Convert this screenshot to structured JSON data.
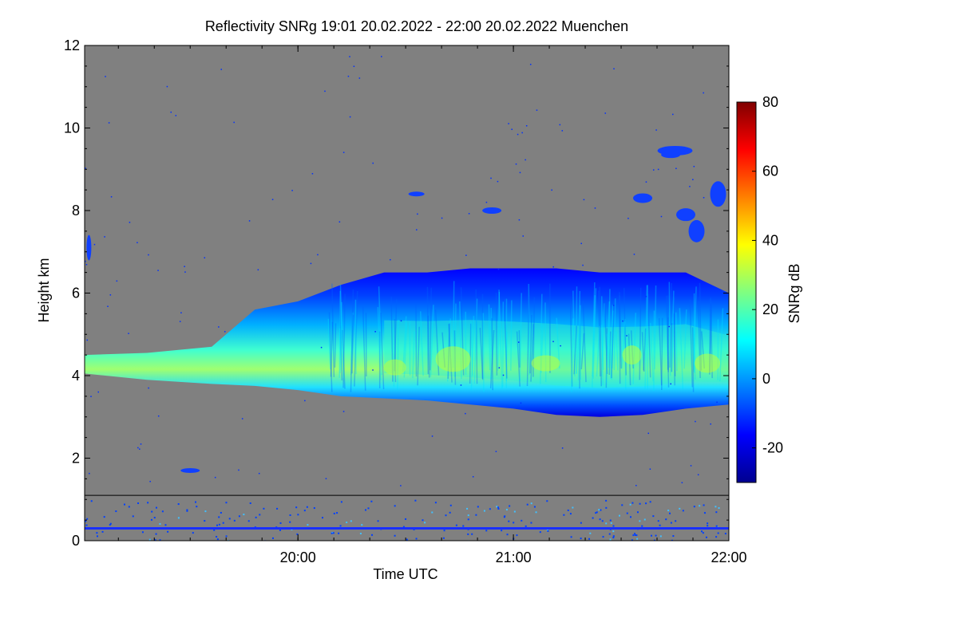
{
  "chart_data": {
    "type": "heatmap",
    "title": "Reflectivity SNRg   19:01 20.02.2022 - 22:00 20.02.2022 Muenchen",
    "xlabel": "Time UTC",
    "ylabel": "Height km",
    "colorbar_label": "SNRg dB",
    "x_ticks": [
      {
        "label": "20:00",
        "hour": 20.0
      },
      {
        "label": "21:00",
        "hour": 21.0
      },
      {
        "label": "22:00",
        "hour": 22.0
      }
    ],
    "xlim": [
      19.01,
      22.0
    ],
    "ylim": [
      0,
      12
    ],
    "y_ticks": [
      0,
      2,
      4,
      6,
      8,
      10,
      12
    ],
    "y_tick_labels": [
      "0",
      "2",
      "4",
      "6",
      "8",
      "10",
      "12"
    ],
    "colorbar_range": [
      -30,
      80
    ],
    "colorbar_ticks": [
      -20,
      0,
      20,
      40,
      60,
      80
    ],
    "colorbar_tick_labels": [
      "-20",
      "0",
      "20",
      "40",
      "60",
      "80"
    ],
    "background_color": "#808080",
    "colormap": [
      "#00008f",
      "#0000ff",
      "#0080ff",
      "#00ffff",
      "#80ff80",
      "#ffff00",
      "#ff8000",
      "#ff0000",
      "#800000"
    ],
    "bands": [
      {
        "name": "main-cloud-layer",
        "top": [
          [
            19.01,
            4.5
          ],
          [
            19.3,
            4.55
          ],
          [
            19.6,
            4.7
          ],
          [
            19.8,
            5.6
          ],
          [
            20.0,
            5.8
          ],
          [
            20.2,
            6.2
          ],
          [
            20.4,
            6.5
          ],
          [
            20.6,
            6.5
          ],
          [
            20.8,
            6.6
          ],
          [
            21.0,
            6.6
          ],
          [
            21.2,
            6.6
          ],
          [
            21.4,
            6.5
          ],
          [
            21.6,
            6.5
          ],
          [
            21.8,
            6.5
          ],
          [
            22.0,
            6.0
          ]
        ],
        "bottom": [
          [
            19.01,
            4.05
          ],
          [
            19.3,
            3.9
          ],
          [
            19.6,
            3.8
          ],
          [
            19.8,
            3.75
          ],
          [
            20.0,
            3.65
          ],
          [
            20.2,
            3.5
          ],
          [
            20.4,
            3.45
          ],
          [
            20.6,
            3.4
          ],
          [
            20.8,
            3.3
          ],
          [
            21.0,
            3.2
          ],
          [
            21.2,
            3.05
          ],
          [
            21.4,
            3.0
          ],
          [
            21.6,
            3.05
          ],
          [
            21.8,
            3.2
          ],
          [
            22.0,
            3.3
          ]
        ]
      }
    ],
    "near_surface_line_km": 0.3,
    "separator_height_km": 1.1
  }
}
